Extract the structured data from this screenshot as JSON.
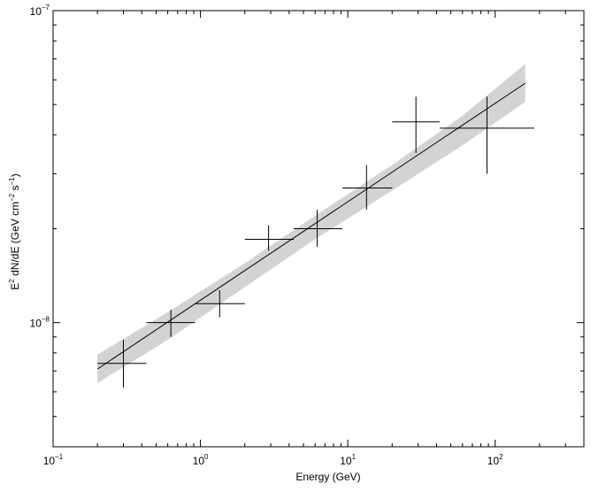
{
  "chart_data": {
    "type": "scatter",
    "xlabel": "Energy (GeV)",
    "ylabel": "E² dN/dE (GeV cm⁻² s⁻¹)",
    "ylabel_parts": {
      "e": "E",
      "e_exp": "2",
      "mid": " dN/dE (GeV cm",
      "cm_exp": "−2",
      "s": " s",
      "s_exp": "−1",
      "close": ")"
    },
    "x_scale": "log",
    "y_scale": "log",
    "xlim": [
      0.1,
      400
    ],
    "ylim": [
      4e-09,
      1e-07
    ],
    "grid": false,
    "x_major_ticks": [
      {
        "value": 0.1,
        "base": "10",
        "exp": "−1"
      },
      {
        "value": 1,
        "base": "10",
        "exp": "0"
      },
      {
        "value": 10,
        "base": "10",
        "exp": "1"
      },
      {
        "value": 100,
        "base": "10",
        "exp": "2"
      }
    ],
    "y_major_ticks": [
      {
        "value": 1e-08,
        "base": "10",
        "exp": "−8"
      },
      {
        "value": 1e-07,
        "base": "10",
        "exp": "−7"
      }
    ],
    "series": [
      {
        "kind": "points_with_errors",
        "color": "#000000",
        "points": [
          {
            "x": 0.3,
            "x_lo": 0.2,
            "x_hi": 0.43,
            "y": 7.4e-09,
            "y_lo": 6.2e-09,
            "y_hi": 8.8e-09
          },
          {
            "x": 0.63,
            "x_lo": 0.43,
            "x_hi": 0.92,
            "y": 1e-08,
            "y_lo": 9e-09,
            "y_hi": 1.1e-08
          },
          {
            "x": 1.35,
            "x_lo": 0.92,
            "x_hi": 2.0,
            "y": 1.15e-08,
            "y_lo": 1.04e-08,
            "y_hi": 1.27e-08
          },
          {
            "x": 2.9,
            "x_lo": 2.0,
            "x_hi": 4.3,
            "y": 1.85e-08,
            "y_lo": 1.7e-08,
            "y_hi": 2.05e-08
          },
          {
            "x": 6.2,
            "x_lo": 4.3,
            "x_hi": 9.2,
            "y": 2e-08,
            "y_lo": 1.75e-08,
            "y_hi": 2.3e-08
          },
          {
            "x": 13.4,
            "x_lo": 9.2,
            "x_hi": 20,
            "y": 2.7e-08,
            "y_lo": 2.3e-08,
            "y_hi": 3.2e-08
          },
          {
            "x": 29,
            "x_lo": 20,
            "x_hi": 42,
            "y": 4.4e-08,
            "y_lo": 3.5e-08,
            "y_hi": 5.3e-08
          },
          {
            "x": 88,
            "x_lo": 42,
            "x_hi": 185,
            "y": 4.2e-08,
            "y_lo": 3e-08,
            "y_hi": 5.3e-08
          }
        ]
      },
      {
        "kind": "model_line",
        "color": "#000000",
        "x": [
          0.2,
          160
        ],
        "y": [
          7.1e-09,
          5.85e-08
        ]
      },
      {
        "kind": "uncertainty_band",
        "color": "#d3d3d3",
        "x": [
          0.2,
          0.6,
          2,
          6,
          20,
          60,
          160
        ],
        "y_lo": [
          6.4e-09,
          8.8e-09,
          1.3e-08,
          1.85e-08,
          2.65e-08,
          3.7e-08,
          5.1e-08
        ],
        "y_hi": [
          7.9e-09,
          1.08e-08,
          1.55e-08,
          2.2e-08,
          3.2e-08,
          4.6e-08,
          6.75e-08
        ]
      }
    ]
  }
}
